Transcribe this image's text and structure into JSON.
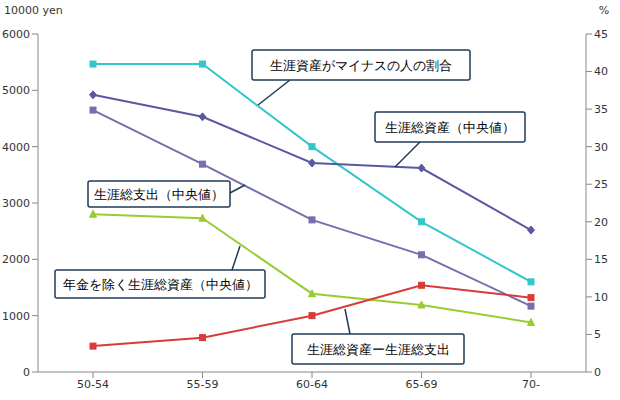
{
  "chart_data": {
    "type": "line",
    "categories": [
      "50-54",
      "55-59",
      "60-64",
      "65-69",
      "70-"
    ],
    "y_label": "10000 yen",
    "y2_label": "%",
    "ylim": [
      0,
      6000
    ],
    "yticks": [
      0,
      1000,
      2000,
      3000,
      4000,
      5000,
      6000
    ],
    "y2lim": [
      0,
      45
    ],
    "y2ticks": [
      0,
      5,
      10,
      15,
      20,
      25,
      30,
      35,
      40,
      45
    ],
    "grid": false,
    "series": [
      {
        "name": "生涯資産がマイナスの人の割合",
        "color": "#33c6cc",
        "marker": "square",
        "axis": "y2",
        "values": [
          41,
          41,
          30,
          20,
          12
        ]
      },
      {
        "name": "生涯総資産（中央値）",
        "color": "#5a58a0",
        "marker": "diamond",
        "values": [
          4920,
          4530,
          3710,
          3620,
          2520
        ]
      },
      {
        "name": "生涯総支出（中央値）",
        "color": "#7470ac",
        "marker": "square",
        "values": [
          4650,
          3690,
          2700,
          2080,
          1170
        ]
      },
      {
        "name": "年金を除く生涯総資産（中央値）",
        "color": "#99cc33",
        "marker": "triangle",
        "values": [
          2800,
          2730,
          1390,
          1190,
          880
        ]
      },
      {
        "name": "生涯総資産ー生涯総支出",
        "color": "#d93a3a",
        "marker": "square",
        "values": [
          460,
          610,
          1000,
          1540,
          1320
        ]
      }
    ]
  }
}
